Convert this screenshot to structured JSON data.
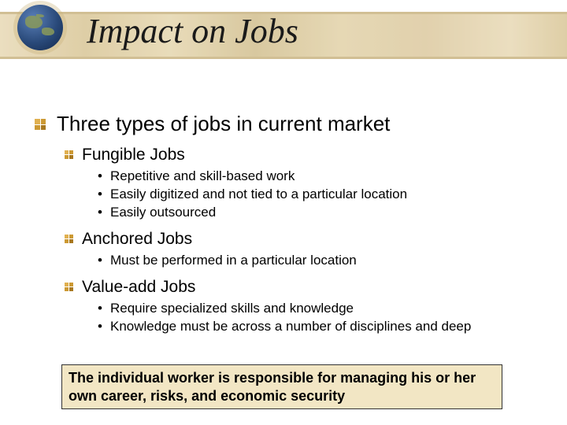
{
  "title": "Impact on Jobs",
  "colors": {
    "band_base": "#e2d2a8",
    "bullet_diamond": "#cc9933",
    "callout_bg": "#f2e6c4",
    "callout_border": "#333333",
    "text": "#000000"
  },
  "typography": {
    "title_font": "Times New Roman",
    "title_style": "italic",
    "title_size_pt": 33,
    "body_font": "Verdana",
    "lvl1_size_pt": 20,
    "lvl2_size_pt": 16,
    "lvl3_size_pt": 13,
    "callout_font": "Arial",
    "callout_size_pt": 14,
    "callout_weight": "bold"
  },
  "lvl1": "Three types of jobs in current market",
  "sections": [
    {
      "heading": "Fungible Jobs",
      "bullets": [
        "Repetitive and skill-based work",
        "Easily digitized and not tied to a particular location",
        "Easily outsourced"
      ]
    },
    {
      "heading": "Anchored Jobs",
      "bullets": [
        "Must be performed in a particular location"
      ]
    },
    {
      "heading": "Value-add Jobs",
      "bullets": [
        "Require specialized skills and knowledge",
        "Knowledge must be across a number of disciplines and deep"
      ]
    }
  ],
  "callout": "The individual worker is responsible for managing his or her own career, risks, and economic security"
}
